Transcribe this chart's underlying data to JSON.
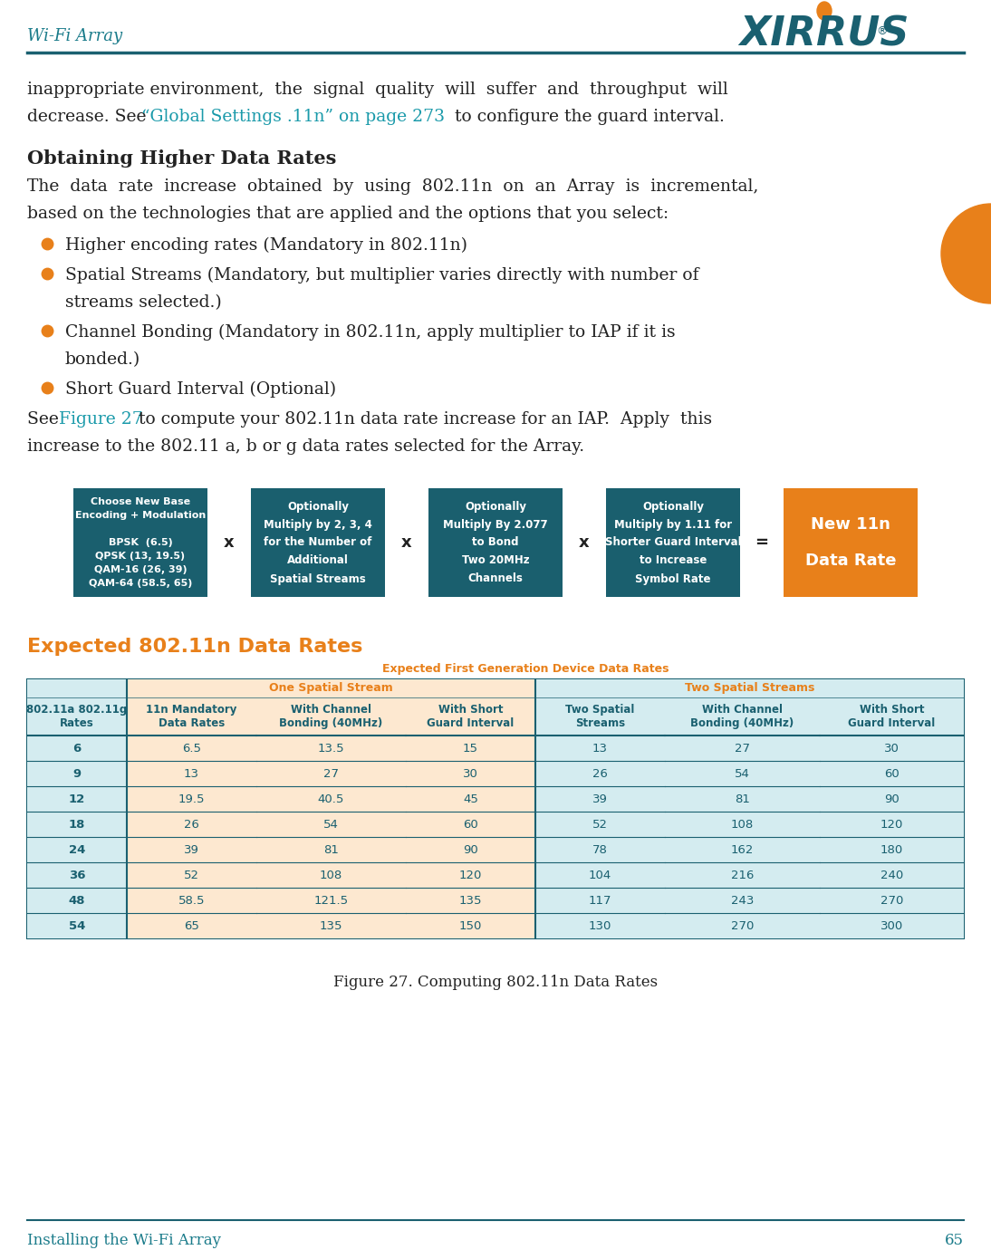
{
  "header_left": "Wi-Fi Array",
  "teal_color": "#1a7b8a",
  "teal_dark": "#1a6070",
  "orange_color": "#e8801a",
  "body_text_color": "#222222",
  "link_color": "#1a9aaa",
  "box_teal": "#1a5f6e",
  "table_teal_text": "#1a6070",
  "table_orange_text": "#e8801a",
  "table_header_border": "#1a6070",
  "table_col0_bg": "#d4ecf0",
  "table_one_stream_bg": "#fde8d0",
  "table_two_stream_bg": "#d4ecf0",
  "table_row_alt_light": "#eef7f9",
  "table_outer_border": "#555555",
  "box1_lines": [
    "Choose New Base",
    "Encoding + Modulation",
    "",
    "BPSK  (6.5)",
    "QPSK (13, 19.5)",
    "QAM-16 (26, 39)",
    "QAM-64 (58.5, 65)"
  ],
  "box2_lines": [
    "Optionally",
    "Multiply by 2, 3, 4",
    "for the Number of",
    "Additional",
    "Spatial Streams"
  ],
  "box3_lines": [
    "Optionally",
    "Multiply By 2.077",
    "to Bond",
    "Two 20MHz",
    "Channels"
  ],
  "box4_lines": [
    "Optionally",
    "Multiply by 1.11 for",
    "Shorter Guard Interval",
    "to Increase",
    "Symbol Rate"
  ],
  "box5_lines": [
    "New 11n",
    "Data Rate"
  ],
  "table_title": "Expected 802.11n Data Rates",
  "table_subtitle": "Expected First Generation Device Data Rates",
  "col_headers_row2": [
    "802.11a 802.11g\nRates",
    "11n Mandatory\nData Rates",
    "With Channel\nBonding (40MHz)",
    "With Short\nGuard Interval",
    "Two Spatial\nStreams",
    "With Channel\nBonding (40MHz)",
    "With Short\nGuard Interval"
  ],
  "table_data": [
    [
      6,
      6.5,
      13.5,
      15,
      13,
      27,
      30
    ],
    [
      9,
      13,
      27,
      30,
      26,
      54,
      60
    ],
    [
      12,
      19.5,
      40.5,
      45,
      39,
      81,
      90
    ],
    [
      18,
      26,
      54,
      60,
      52,
      108,
      120
    ],
    [
      24,
      39,
      81,
      90,
      78,
      162,
      180
    ],
    [
      36,
      52,
      108,
      120,
      104,
      216,
      240
    ],
    [
      48,
      58.5,
      121.5,
      135,
      117,
      243,
      270
    ],
    [
      54,
      65,
      135,
      150,
      130,
      270,
      300
    ]
  ],
  "figure_caption": "Figure 27. Computing 802.11n Data Rates"
}
